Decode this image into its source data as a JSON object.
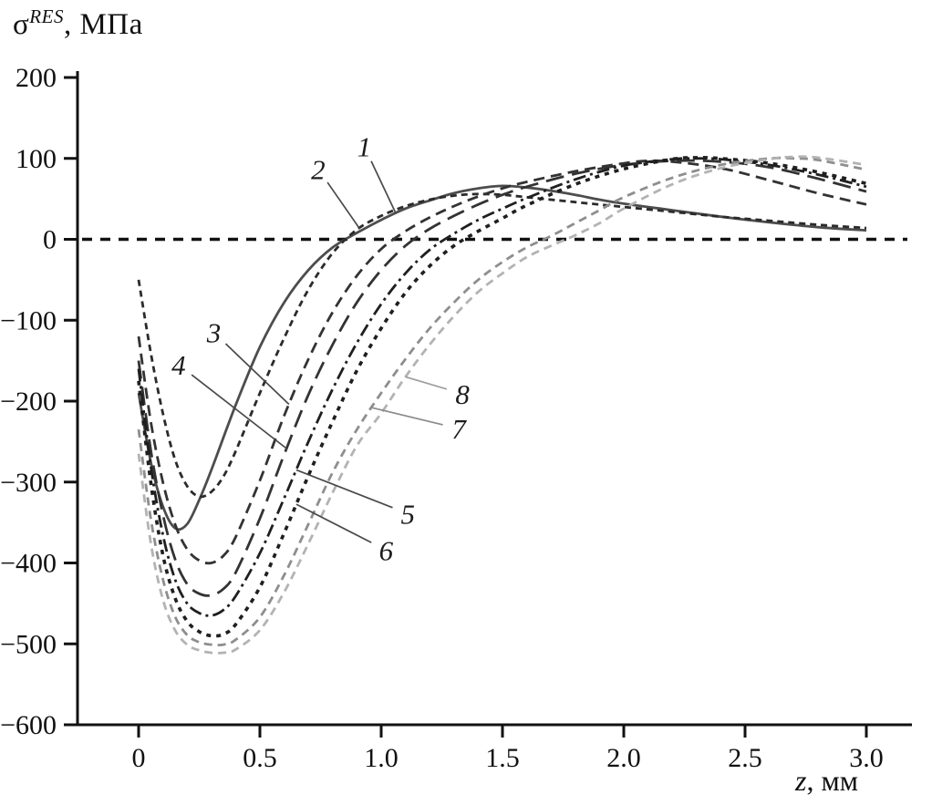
{
  "chart_data": {
    "type": "line",
    "title": {
      "symbol": "σ",
      "superscript": "RES",
      "unit": ", МПа"
    },
    "xlabel": {
      "symbol": "z",
      "unit": ", мм"
    },
    "axes": {
      "x": {
        "min": 0,
        "max": 3.0,
        "ticks": [
          {
            "value": 0,
            "label": "0"
          },
          {
            "value": 0.5,
            "label": "0.5"
          },
          {
            "value": 1.0,
            "label": "1.0"
          },
          {
            "value": 1.5,
            "label": "1.5"
          },
          {
            "value": 2.0,
            "label": "2.0"
          },
          {
            "value": 2.5,
            "label": "2.5"
          },
          {
            "value": 3.0,
            "label": "3.0"
          }
        ]
      },
      "y": {
        "min": -600,
        "max": 200,
        "ticks": [
          {
            "value": 200,
            "label": "200"
          },
          {
            "value": 100,
            "label": "100"
          },
          {
            "value": 0,
            "label": "0"
          },
          {
            "value": -100,
            "label": "−100"
          },
          {
            "value": -200,
            "label": "−200"
          },
          {
            "value": -300,
            "label": "−300"
          },
          {
            "value": -400,
            "label": "−400"
          },
          {
            "value": -500,
            "label": "−500"
          },
          {
            "value": -600,
            "label": "−600"
          }
        ]
      }
    },
    "zero_line": true,
    "grid": false,
    "series": [
      {
        "name": "1",
        "style": {
          "color": "#4d4d4d",
          "width": 2.8,
          "dash": ""
        },
        "points": [
          [
            0,
            -190
          ],
          [
            0.05,
            -275
          ],
          [
            0.1,
            -330
          ],
          [
            0.15,
            -357
          ],
          [
            0.2,
            -352
          ],
          [
            0.25,
            -322
          ],
          [
            0.3,
            -285
          ],
          [
            0.4,
            -205
          ],
          [
            0.5,
            -133
          ],
          [
            0.6,
            -78
          ],
          [
            0.7,
            -38
          ],
          [
            0.8,
            -10
          ],
          [
            0.9,
            8
          ],
          [
            1.0,
            24
          ],
          [
            1.1,
            38
          ],
          [
            1.2,
            48
          ],
          [
            1.3,
            57
          ],
          [
            1.4,
            63
          ],
          [
            1.5,
            66
          ],
          [
            1.6,
            64
          ],
          [
            1.7,
            60
          ],
          [
            1.8,
            55
          ],
          [
            1.9,
            49
          ],
          [
            2.0,
            44
          ],
          [
            2.2,
            36
          ],
          [
            2.4,
            28
          ],
          [
            2.6,
            21
          ],
          [
            2.8,
            15
          ],
          [
            3.0,
            11
          ]
        ]
      },
      {
        "name": "2",
        "style": {
          "color": "#2b2b2b",
          "width": 2.8,
          "dash": "7 5"
        },
        "points": [
          [
            0,
            -50
          ],
          [
            0.05,
            -140
          ],
          [
            0.1,
            -215
          ],
          [
            0.15,
            -272
          ],
          [
            0.2,
            -305
          ],
          [
            0.25,
            -318
          ],
          [
            0.3,
            -312
          ],
          [
            0.35,
            -293
          ],
          [
            0.4,
            -262
          ],
          [
            0.5,
            -190
          ],
          [
            0.6,
            -122
          ],
          [
            0.7,
            -62
          ],
          [
            0.8,
            -17
          ],
          [
            0.9,
            12
          ],
          [
            1.0,
            29
          ],
          [
            1.1,
            41
          ],
          [
            1.2,
            49
          ],
          [
            1.3,
            54
          ],
          [
            1.4,
            56
          ],
          [
            1.5,
            55
          ],
          [
            1.6,
            52
          ],
          [
            1.8,
            46
          ],
          [
            2.0,
            40
          ],
          [
            2.2,
            34
          ],
          [
            2.4,
            28
          ],
          [
            2.6,
            23
          ],
          [
            2.8,
            18
          ],
          [
            3.0,
            14
          ]
        ]
      },
      {
        "name": "3",
        "style": {
          "color": "#333333",
          "width": 2.8,
          "dash": "12 7"
        },
        "points": [
          [
            0,
            -120
          ],
          [
            0.05,
            -225
          ],
          [
            0.1,
            -300
          ],
          [
            0.15,
            -352
          ],
          [
            0.2,
            -383
          ],
          [
            0.25,
            -397
          ],
          [
            0.3,
            -400
          ],
          [
            0.35,
            -391
          ],
          [
            0.4,
            -368
          ],
          [
            0.5,
            -298
          ],
          [
            0.6,
            -218
          ],
          [
            0.7,
            -148
          ],
          [
            0.8,
            -90
          ],
          [
            0.9,
            -45
          ],
          [
            1.0,
            -12
          ],
          [
            1.1,
            10
          ],
          [
            1.2,
            27
          ],
          [
            1.3,
            41
          ],
          [
            1.4,
            53
          ],
          [
            1.5,
            63
          ],
          [
            1.6,
            71
          ],
          [
            1.8,
            84
          ],
          [
            2.0,
            94
          ],
          [
            2.1,
            97
          ],
          [
            2.2,
            96
          ],
          [
            2.4,
            88
          ],
          [
            2.6,
            73
          ],
          [
            2.8,
            57
          ],
          [
            3.0,
            43
          ]
        ]
      },
      {
        "name": "4",
        "style": {
          "color": "#333333",
          "width": 2.8,
          "dash": "20 9"
        },
        "points": [
          [
            0,
            -150
          ],
          [
            0.05,
            -260
          ],
          [
            0.1,
            -340
          ],
          [
            0.15,
            -395
          ],
          [
            0.2,
            -426
          ],
          [
            0.25,
            -438
          ],
          [
            0.3,
            -440
          ],
          [
            0.35,
            -432
          ],
          [
            0.4,
            -412
          ],
          [
            0.5,
            -345
          ],
          [
            0.6,
            -266
          ],
          [
            0.7,
            -192
          ],
          [
            0.8,
            -130
          ],
          [
            0.9,
            -78
          ],
          [
            1.0,
            -38
          ],
          [
            1.1,
            -8
          ],
          [
            1.2,
            13
          ],
          [
            1.3,
            29
          ],
          [
            1.4,
            43
          ],
          [
            1.5,
            55
          ],
          [
            1.6,
            65
          ],
          [
            1.8,
            81
          ],
          [
            2.0,
            92
          ],
          [
            2.2,
            97
          ],
          [
            2.4,
            96
          ],
          [
            2.6,
            89
          ],
          [
            2.8,
            75
          ],
          [
            3.0,
            59
          ]
        ]
      },
      {
        "name": "5",
        "style": {
          "color": "#1f1f1f",
          "width": 2.8,
          "dash": "14 5 3 5"
        },
        "points": [
          [
            0,
            -160
          ],
          [
            0.05,
            -280
          ],
          [
            0.1,
            -365
          ],
          [
            0.15,
            -420
          ],
          [
            0.2,
            -450
          ],
          [
            0.25,
            -462
          ],
          [
            0.3,
            -465
          ],
          [
            0.35,
            -458
          ],
          [
            0.4,
            -441
          ],
          [
            0.5,
            -388
          ],
          [
            0.6,
            -320
          ],
          [
            0.7,
            -250
          ],
          [
            0.8,
            -185
          ],
          [
            0.9,
            -128
          ],
          [
            1.0,
            -80
          ],
          [
            1.1,
            -42
          ],
          [
            1.2,
            -13
          ],
          [
            1.3,
            7
          ],
          [
            1.4,
            24
          ],
          [
            1.5,
            38
          ],
          [
            1.6,
            51
          ],
          [
            1.8,
            74
          ],
          [
            2.0,
            91
          ],
          [
            2.2,
            99
          ],
          [
            2.3,
            100
          ],
          [
            2.4,
            99
          ],
          [
            2.6,
            92
          ],
          [
            2.8,
            80
          ],
          [
            3.0,
            65
          ]
        ]
      },
      {
        "name": "6",
        "style": {
          "color": "#1f1f1f",
          "width": 3.6,
          "dash": "5 6"
        },
        "points": [
          [
            0,
            -175
          ],
          [
            0.05,
            -300
          ],
          [
            0.1,
            -390
          ],
          [
            0.15,
            -443
          ],
          [
            0.2,
            -472
          ],
          [
            0.25,
            -485
          ],
          [
            0.3,
            -490
          ],
          [
            0.35,
            -488
          ],
          [
            0.4,
            -476
          ],
          [
            0.5,
            -430
          ],
          [
            0.6,
            -363
          ],
          [
            0.7,
            -292
          ],
          [
            0.8,
            -225
          ],
          [
            0.9,
            -162
          ],
          [
            1.0,
            -110
          ],
          [
            1.1,
            -66
          ],
          [
            1.2,
            -33
          ],
          [
            1.3,
            -8
          ],
          [
            1.4,
            10
          ],
          [
            1.5,
            26
          ],
          [
            1.6,
            42
          ],
          [
            1.8,
            68
          ],
          [
            2.0,
            87
          ],
          [
            2.2,
            99
          ],
          [
            2.3,
            101
          ],
          [
            2.4,
            100
          ],
          [
            2.6,
            94
          ],
          [
            2.8,
            83
          ],
          [
            3.0,
            69
          ]
        ]
      },
      {
        "name": "7",
        "style": {
          "color": "#8e8e8e",
          "width": 2.8,
          "dash": "9 6"
        },
        "points": [
          [
            0,
            -235
          ],
          [
            0.05,
            -345
          ],
          [
            0.1,
            -420
          ],
          [
            0.15,
            -466
          ],
          [
            0.2,
            -489
          ],
          [
            0.25,
            -498
          ],
          [
            0.3,
            -501
          ],
          [
            0.35,
            -501
          ],
          [
            0.4,
            -495
          ],
          [
            0.5,
            -467
          ],
          [
            0.6,
            -415
          ],
          [
            0.7,
            -352
          ],
          [
            0.8,
            -288
          ],
          [
            0.9,
            -235
          ],
          [
            1.0,
            -190
          ],
          [
            1.1,
            -148
          ],
          [
            1.2,
            -110
          ],
          [
            1.3,
            -78
          ],
          [
            1.4,
            -50
          ],
          [
            1.5,
            -28
          ],
          [
            1.6,
            -10
          ],
          [
            1.7,
            4
          ],
          [
            1.8,
            20
          ],
          [
            1.9,
            36
          ],
          [
            2.0,
            52
          ],
          [
            2.2,
            76
          ],
          [
            2.4,
            92
          ],
          [
            2.6,
            100
          ],
          [
            2.7,
            100
          ],
          [
            2.8,
            98
          ],
          [
            3.0,
            86
          ]
        ]
      },
      {
        "name": "8",
        "style": {
          "color": "#b3b3b3",
          "width": 2.8,
          "dash": "9 6"
        },
        "points": [
          [
            0,
            -265
          ],
          [
            0.05,
            -375
          ],
          [
            0.1,
            -445
          ],
          [
            0.15,
            -483
          ],
          [
            0.2,
            -501
          ],
          [
            0.25,
            -508
          ],
          [
            0.3,
            -511
          ],
          [
            0.35,
            -511
          ],
          [
            0.4,
            -507
          ],
          [
            0.5,
            -483
          ],
          [
            0.6,
            -436
          ],
          [
            0.7,
            -376
          ],
          [
            0.8,
            -313
          ],
          [
            0.9,
            -255
          ],
          [
            1.0,
            -215
          ],
          [
            1.1,
            -170
          ],
          [
            1.2,
            -130
          ],
          [
            1.3,
            -95
          ],
          [
            1.4,
            -65
          ],
          [
            1.5,
            -42
          ],
          [
            1.6,
            -22
          ],
          [
            1.7,
            -8
          ],
          [
            1.8,
            5
          ],
          [
            1.9,
            20
          ],
          [
            2.0,
            38
          ],
          [
            2.2,
            68
          ],
          [
            2.4,
            88
          ],
          [
            2.6,
            99
          ],
          [
            2.7,
            102
          ],
          [
            2.8,
            101
          ],
          [
            3.0,
            92
          ]
        ]
      }
    ],
    "annotations": [
      {
        "label": "1",
        "series": 0,
        "target_z": 1.06,
        "label_pos": [
          0.93,
          115
        ],
        "leader_color": "#4a4a4a"
      },
      {
        "label": "2",
        "series": 1,
        "target_z": 0.91,
        "label_pos": [
          0.74,
          87
        ],
        "leader_color": "#4a4a4a"
      },
      {
        "label": "3",
        "series": 2,
        "target_z": 0.62,
        "label_pos": [
          0.31,
          -115
        ],
        "leader_color": "#4a4a4a"
      },
      {
        "label": "4",
        "series": 3,
        "target_z": 0.61,
        "label_pos": [
          0.165,
          -155
        ],
        "leader_color": "#4a4a4a"
      },
      {
        "label": "8",
        "series": 7,
        "target_z": 1.1,
        "label_pos": [
          1.335,
          -191
        ],
        "leader_color": "#a0a0a0"
      },
      {
        "label": "7",
        "series": 6,
        "target_z": 0.96,
        "label_pos": [
          1.32,
          -234
        ],
        "leader_color": "#8a8a8a"
      },
      {
        "label": "5",
        "series": 4,
        "target_z": 0.65,
        "label_pos": [
          1.11,
          -339
        ],
        "leader_color": "#4a4a4a"
      },
      {
        "label": "6",
        "series": 5,
        "target_z": 0.65,
        "label_pos": [
          1.02,
          -384
        ],
        "leader_color": "#4a4a4a"
      }
    ]
  }
}
